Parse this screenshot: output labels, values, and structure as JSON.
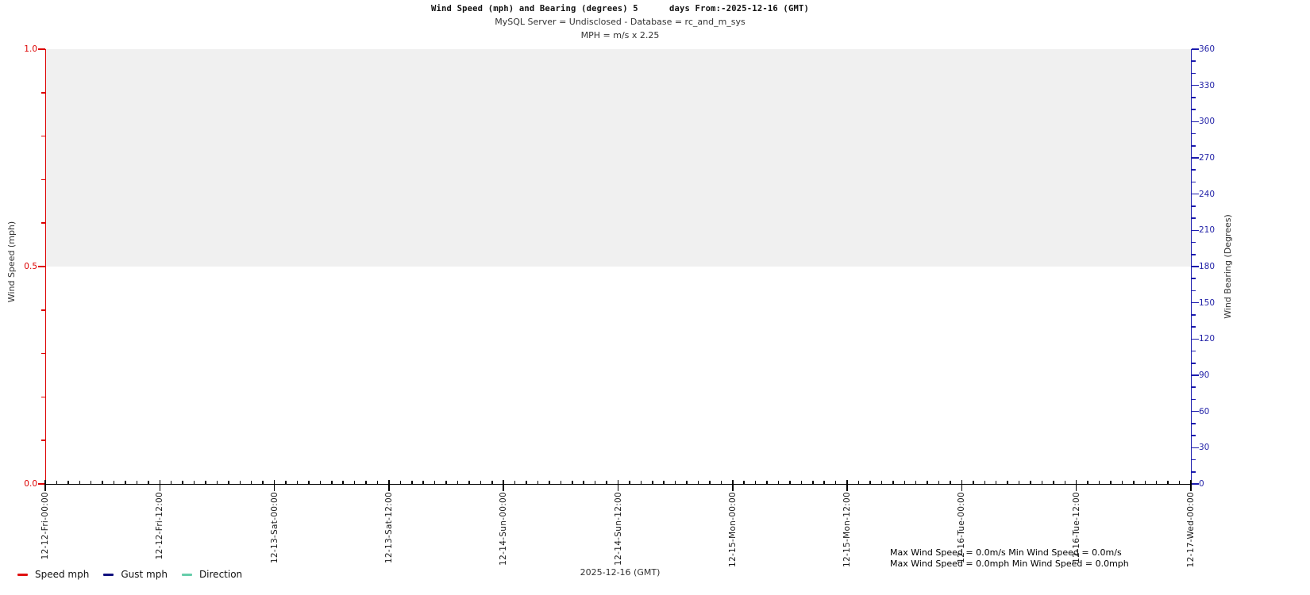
{
  "header": {
    "title": "Wind Speed (mph) and Bearing (degrees) 5      days From:-2025-12-16 (GMT)",
    "subtitle1": "MySQL Server = Undisclosed - Database = rc_and_m_sys",
    "subtitle2": "MPH = m/s x 2.25"
  },
  "left_axis": {
    "label": "Wind Speed (mph)",
    "ticks": [
      "1.0",
      "0.5",
      "0.0"
    ],
    "color": "#dd0000"
  },
  "right_axis": {
    "label": "Wind Bearing (Degrees)",
    "ticks": [
      "360",
      "330",
      "300",
      "270",
      "240",
      "210",
      "180",
      "150",
      "120",
      "90",
      "60",
      "30",
      "0"
    ],
    "color": "#1c1cae"
  },
  "x_axis": {
    "labels": [
      "12-12-Fri-00:00",
      "12-12-Fri-12:00",
      "12-13-Sat-00:00",
      "12-13-Sat-12:00",
      "12-14-Sun-00:00",
      "12-14-Sun-12:00",
      "12-15-Mon-00:00",
      "12-15-Mon-12:00",
      "12-16-Tue-00:00",
      "12-16-Tue-12:00",
      "12-17-Wed-00:00"
    ],
    "caption": "2025-12-16 (GMT)"
  },
  "legend": [
    {
      "label": "Speed mph",
      "color": "#e01010"
    },
    {
      "label": "Gust mph",
      "color": "#10107e"
    },
    {
      "label": "Direction",
      "color": "#66cdaa"
    }
  ],
  "annotations": [
    "Max Wind Speed = 0.0m/s Min Wind Speed = 0.0m/s",
    "Max Wind Speed = 0.0mph Min Wind Speed = 0.0mph"
  ],
  "chart_data": {
    "type": "line",
    "title": "Wind Speed (mph) and Bearing (degrees) 5 days From:-2025-12-16 (GMT)",
    "x": [
      "12-12-Fri-00:00",
      "12-12-Fri-12:00",
      "12-13-Sat-00:00",
      "12-13-Sat-12:00",
      "12-14-Sun-00:00",
      "12-14-Sun-12:00",
      "12-15-Mon-00:00",
      "12-15-Mon-12:00",
      "12-16-Tue-00:00",
      "12-16-Tue-12:00",
      "12-17-Wed-00:00"
    ],
    "series": [
      {
        "name": "Speed mph",
        "axis": "left",
        "color": "#e01010",
        "values": [
          0,
          0,
          0,
          0,
          0,
          0,
          0,
          0,
          0,
          0,
          0
        ]
      },
      {
        "name": "Gust mph",
        "axis": "left",
        "color": "#10107e",
        "values": [
          0,
          0,
          0,
          0,
          0,
          0,
          0,
          0,
          0,
          0,
          0
        ]
      },
      {
        "name": "Direction",
        "axis": "right",
        "color": "#66cdaa",
        "values": [
          0,
          0,
          0,
          0,
          0,
          0,
          0,
          0,
          0,
          0,
          0
        ]
      }
    ],
    "xlabel": "2025-12-16 (GMT)",
    "ylabel_left": "Wind Speed (mph)",
    "ylabel_right": "Wind Bearing (Degrees)",
    "left_ylim": [
      0.0,
      1.0
    ],
    "right_ylim": [
      0,
      360
    ],
    "left_major_step": 0.5,
    "left_minor_step": 0.1,
    "right_major_step": 30,
    "right_minor_step": 10,
    "shaded_band_left_axis": [
      0.5,
      1.0
    ],
    "shaded_band_color": "#f0f0f0",
    "grid": false,
    "legend_position": "bottom-left",
    "max_wind_speed_ms": 0.0,
    "min_wind_speed_ms": 0.0,
    "max_wind_speed_mph": 0.0,
    "min_wind_speed_mph": 0.0
  }
}
